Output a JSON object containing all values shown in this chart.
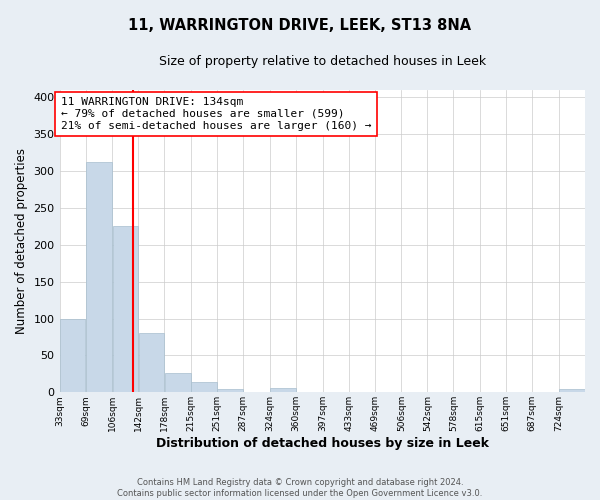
{
  "title": "11, WARRINGTON DRIVE, LEEK, ST13 8NA",
  "subtitle": "Size of property relative to detached houses in Leek",
  "xlabel": "Distribution of detached houses by size in Leek",
  "ylabel": "Number of detached properties",
  "bar_color": "#c8d8e8",
  "bar_edge_color": "#a8bece",
  "vline_color": "red",
  "vline_x": 134,
  "annotation_lines": [
    "11 WARRINGTON DRIVE: 134sqm",
    "← 79% of detached houses are smaller (599)",
    "21% of semi-detached houses are larger (160) →"
  ],
  "bin_edges": [
    33,
    69,
    106,
    142,
    178,
    215,
    251,
    287,
    324,
    360,
    397,
    433,
    469,
    506,
    542,
    578,
    615,
    651,
    687,
    724,
    760
  ],
  "bar_heights": [
    99,
    313,
    225,
    81,
    26,
    14,
    5,
    0,
    6,
    0,
    0,
    0,
    0,
    1,
    0,
    0,
    0,
    0,
    0,
    5
  ],
  "ylim": [
    0,
    410
  ],
  "yticks": [
    0,
    50,
    100,
    150,
    200,
    250,
    300,
    350,
    400
  ],
  "footer_lines": [
    "Contains HM Land Registry data © Crown copyright and database right 2024.",
    "Contains public sector information licensed under the Open Government Licence v3.0."
  ],
  "bg_color": "#e8eef4",
  "plot_bg_color": "#ffffff",
  "grid_color": "#cccccc"
}
